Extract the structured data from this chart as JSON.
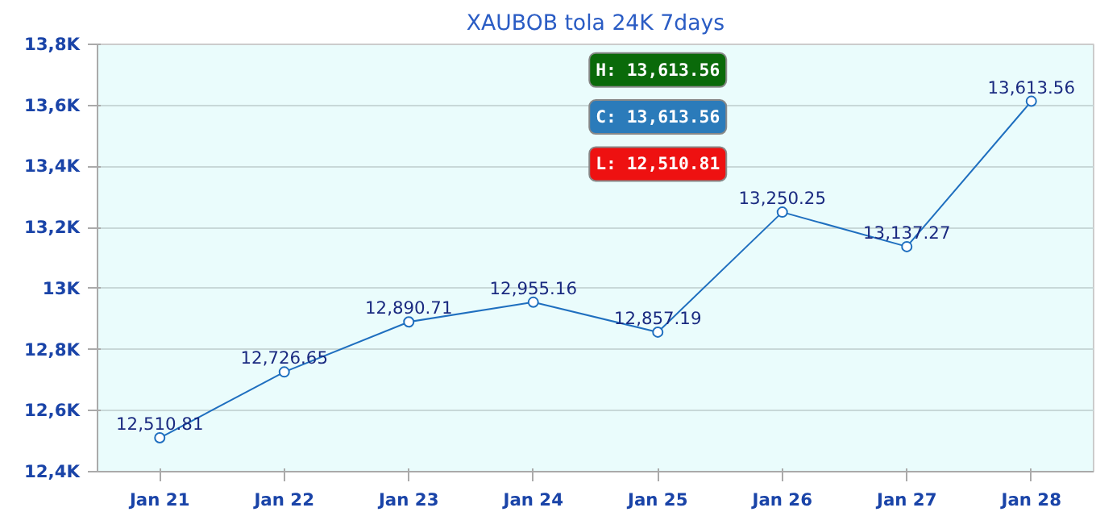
{
  "chart_data": {
    "type": "line",
    "title": "XAUBOB tola 24K 7days",
    "categories": [
      "Jan 21",
      "Jan 22",
      "Jan 23",
      "Jan 24",
      "Jan 25",
      "Jan 26",
      "Jan 27",
      "Jan 28"
    ],
    "series": [
      {
        "color": "#1f6fbf",
        "values": [
          12510.81,
          12726.65,
          12890.71,
          12955.16,
          12857.19,
          13250.25,
          13137.27,
          13613.56
        ]
      }
    ],
    "value_labels": [
      "12,510.81",
      "12,726.65",
      "12,890.71",
      "12,955.16",
      "12,857.19",
      "13,250.25",
      "13,137.27",
      "13,613.56"
    ],
    "ylim": [
      12400,
      13800
    ],
    "yticks": [
      {
        "value": 12400,
        "label": "12,4K"
      },
      {
        "value": 12600,
        "label": "12,6K"
      },
      {
        "value": 12800,
        "label": "12,8K"
      },
      {
        "value": 13000,
        "label": "13K"
      },
      {
        "value": 13200,
        "label": "13,2K"
      },
      {
        "value": 13400,
        "label": "13,4K"
      },
      {
        "value": 13600,
        "label": "13,6K"
      },
      {
        "value": 13800,
        "label": "13,8K"
      }
    ],
    "grid": "y",
    "marker": "circle",
    "line_style": "solid",
    "annotations": [
      "H: 13,613.56",
      "C: 13,613.56",
      "L: 12,510.81"
    ]
  }
}
